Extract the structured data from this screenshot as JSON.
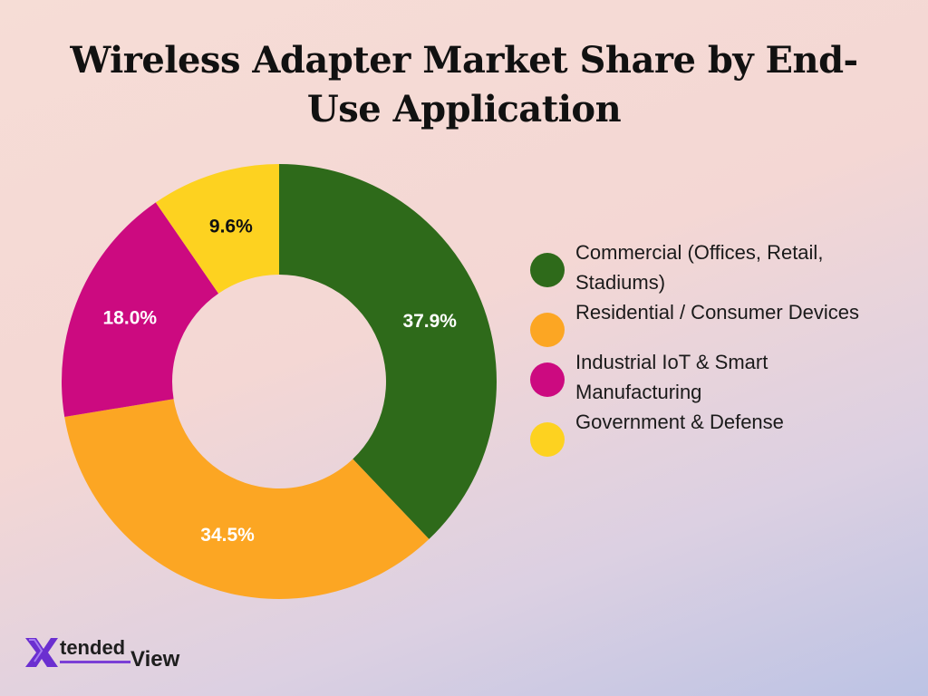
{
  "chart_data": {
    "type": "pie",
    "title": "Wireless Adapter Market Share by End-Use Application",
    "donut": true,
    "start_angle_deg": 0,
    "direction": "clockwise",
    "categories": [
      "Commercial (Offices, Retail, Stadiums)",
      "Residential / Consumer Devices",
      "Industrial IoT & Smart Manufacturing",
      "Government & Defense"
    ],
    "values": [
      37.9,
      34.5,
      18.0,
      9.6
    ],
    "value_labels": [
      "37.9%",
      "34.5%",
      "18.0%",
      "9.6%"
    ],
    "colors": [
      "#2e6a1a",
      "#fca623",
      "#cc0a80",
      "#fdd220"
    ],
    "label_colors": [
      "#ffffff",
      "#ffffff",
      "#ffffff",
      "#111111"
    ],
    "legend_position": "right"
  },
  "logo": {
    "word1": "tended",
    "word2": "View",
    "x_color": "#6b2fd0"
  }
}
